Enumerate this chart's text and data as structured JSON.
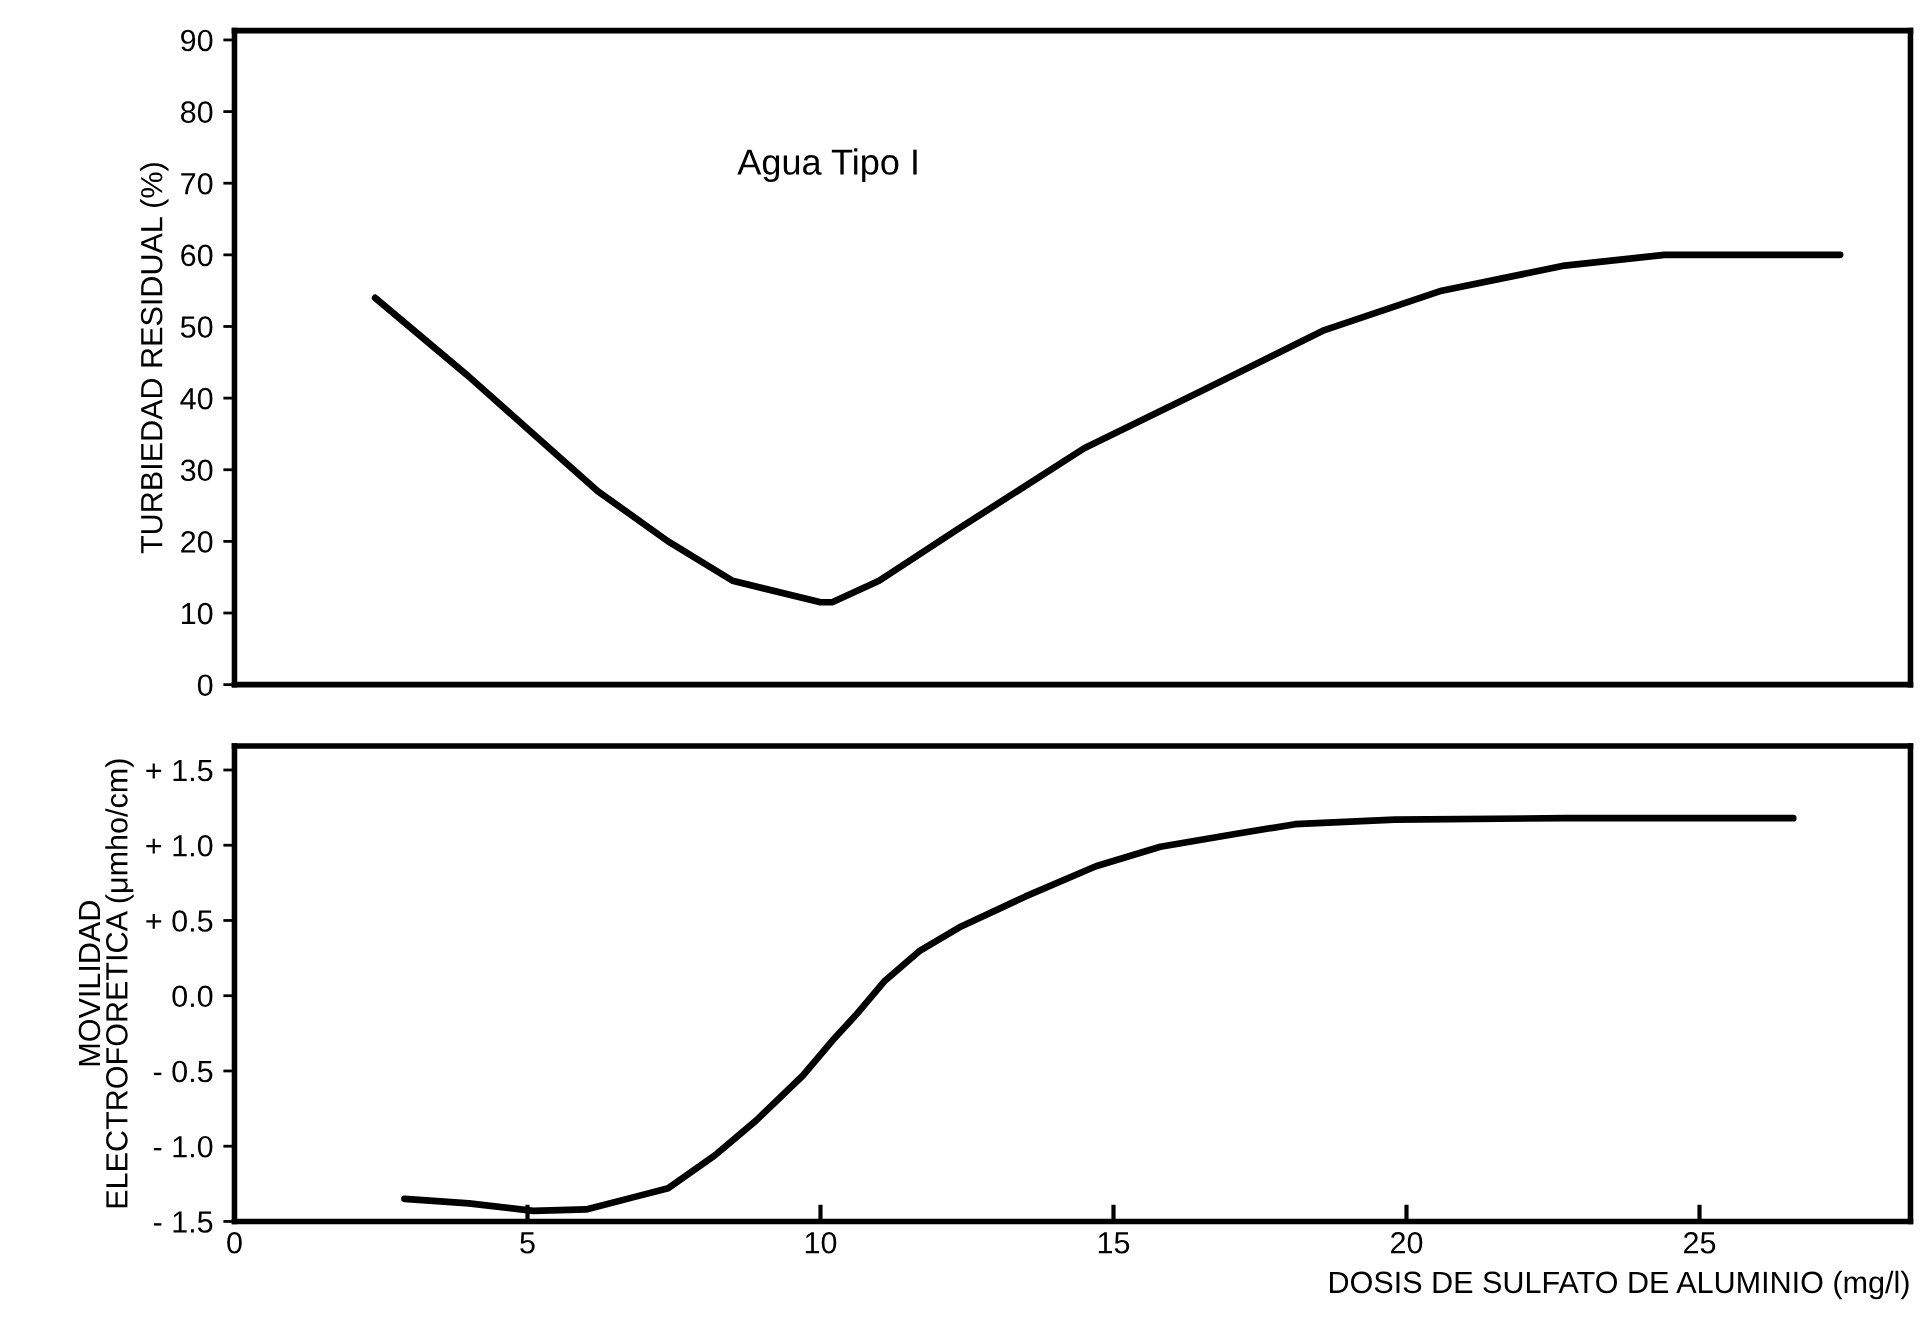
{
  "chart_data": [
    {
      "type": "line",
      "ylabel": "TURBIEDAD RESIDUAL (%)",
      "annotations": [
        "Agua Tipo I"
      ],
      "xlim": [
        0,
        28.6
      ],
      "ylim": [
        0,
        91.3
      ],
      "yticks": [
        0,
        10,
        20,
        30,
        40,
        50,
        60,
        70,
        80,
        90
      ],
      "tick_labels": "y",
      "grid": false,
      "legend": false,
      "marker": "none",
      "line_style": "solid",
      "series": [
        {
          "color": "#000000",
          "x": [
            2.4,
            4.0,
            5.1,
            6.2,
            7.4,
            8.5,
            10.0,
            10.2,
            11.0,
            12.4,
            14.5,
            16.5,
            18.6,
            20.6,
            22.7,
            24.4,
            26.4,
            27.4
          ],
          "values": [
            54,
            43,
            35,
            27,
            20,
            14.5,
            11.5,
            11.5,
            14.5,
            22,
            33,
            41,
            49.5,
            55,
            58.5,
            60,
            60,
            60
          ]
        }
      ]
    },
    {
      "type": "line",
      "xlabel": "DOSIS DE SULFATO DE ALUMINIO (mg/l)",
      "ylabel": "MOVILIDAD\nELECTROFORETICA (μmho/cm)",
      "xlim": [
        0,
        28.6
      ],
      "xticks": [
        0,
        5,
        10,
        15,
        20,
        25
      ],
      "ylim": [
        -1.5,
        1.66
      ],
      "yticks": [
        {
          "value": 1.5,
          "label": "+ 1.5"
        },
        {
          "value": 1.0,
          "label": "+ 1.0"
        },
        {
          "value": 0.5,
          "label": "+ 0.5"
        },
        {
          "value": 0.0,
          "label": "0.0"
        },
        {
          "value": -0.5,
          "label": "- 0.5"
        },
        {
          "value": -1.0,
          "label": "- 1.0"
        },
        {
          "value": -1.5,
          "label": "- 1.5"
        }
      ],
      "grid": false,
      "legend": false,
      "marker": "none",
      "line_style": "solid",
      "series": [
        {
          "color": "#000000",
          "x": [
            2.9,
            4.0,
            5.1,
            6.0,
            6.8,
            7.4,
            8.2,
            8.9,
            9.7,
            10.2,
            10.6,
            11.1,
            11.7,
            12.4,
            13.5,
            14.7,
            15.8,
            17.0,
            18.1,
            19.8,
            22.7,
            26.6
          ],
          "values": [
            -1.35,
            -1.38,
            -1.43,
            -1.42,
            -1.34,
            -1.28,
            -1.06,
            -0.83,
            -0.53,
            -0.3,
            -0.13,
            0.1,
            0.3,
            0.46,
            0.66,
            0.86,
            0.99,
            1.07,
            1.14,
            1.17,
            1.18,
            1.18
          ]
        }
      ]
    }
  ]
}
